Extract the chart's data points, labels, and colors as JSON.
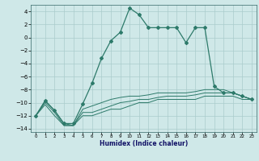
{
  "xlabel": "Humidex (Indice chaleur)",
  "ylabel": "",
  "bg_color": "#cfe8e8",
  "grid_color": "#aacccc",
  "line_color": "#2d7a6a",
  "xlim": [
    -0.5,
    23.5
  ],
  "ylim": [
    -14.5,
    5.0
  ],
  "yticks": [
    -14,
    -12,
    -10,
    -8,
    -6,
    -4,
    -2,
    0,
    2,
    4
  ],
  "xticks": [
    0,
    1,
    2,
    3,
    4,
    5,
    6,
    7,
    8,
    9,
    10,
    11,
    12,
    13,
    14,
    15,
    16,
    17,
    18,
    19,
    20,
    21,
    22,
    23
  ],
  "series_main_x": [
    0,
    1,
    2,
    3,
    4,
    5,
    6,
    7,
    8,
    9,
    10,
    11,
    12,
    13,
    14,
    15,
    16,
    17,
    18,
    19,
    20,
    21,
    22,
    23
  ],
  "series_main_y": [
    -12,
    -9.7,
    -11.2,
    -13.2,
    -13.2,
    -10.2,
    -7.0,
    -3.2,
    -0.5,
    0.8,
    4.5,
    3.5,
    1.5,
    1.5,
    1.5,
    1.5,
    -0.8,
    1.5,
    1.5,
    -7.5,
    -8.5,
    -8.5,
    -9.0,
    -9.5
  ],
  "series_lower1_x": [
    0,
    1,
    2,
    3,
    4,
    5,
    6,
    7,
    8,
    9,
    10,
    11,
    12,
    13,
    14,
    15,
    16,
    17,
    18,
    19,
    20,
    21,
    22,
    23
  ],
  "series_lower1_y": [
    -12,
    -9.7,
    -11.2,
    -13.2,
    -13.5,
    -11.0,
    -10.5,
    -10.0,
    -9.5,
    -9.2,
    -9.0,
    -9.0,
    -8.8,
    -8.5,
    -8.5,
    -8.5,
    -8.5,
    -8.3,
    -8.0,
    -8.0,
    -8.0,
    -8.5,
    -9.0,
    -9.5
  ],
  "series_lower2_x": [
    0,
    1,
    2,
    3,
    4,
    5,
    6,
    7,
    8,
    9,
    10,
    11,
    12,
    13,
    14,
    15,
    16,
    17,
    18,
    19,
    20,
    21,
    22,
    23
  ],
  "series_lower2_y": [
    -12,
    -10.0,
    -11.5,
    -13.5,
    -13.5,
    -11.5,
    -11.5,
    -11.0,
    -10.5,
    -10.0,
    -9.8,
    -9.5,
    -9.5,
    -9.2,
    -9.0,
    -9.0,
    -9.0,
    -8.8,
    -8.5,
    -8.5,
    -8.5,
    -8.5,
    -9.0,
    -9.5
  ],
  "series_lower3_x": [
    0,
    1,
    2,
    3,
    4,
    5,
    6,
    7,
    8,
    9,
    10,
    11,
    12,
    13,
    14,
    15,
    16,
    17,
    18,
    19,
    20,
    21,
    22,
    23
  ],
  "series_lower3_y": [
    -12,
    -10.3,
    -12.0,
    -13.5,
    -13.5,
    -12.0,
    -12.0,
    -11.5,
    -11.0,
    -11.0,
    -10.5,
    -10.0,
    -10.0,
    -9.5,
    -9.5,
    -9.5,
    -9.5,
    -9.5,
    -9.0,
    -9.0,
    -9.0,
    -9.0,
    -9.5,
    -9.5
  ]
}
